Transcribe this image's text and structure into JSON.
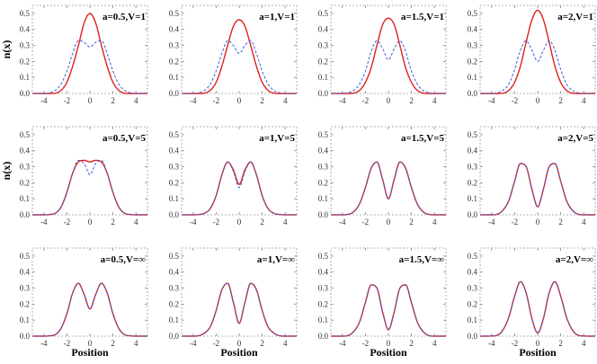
{
  "chart_data": {
    "type": "line",
    "layout": "3x4 grid of panels",
    "xlabel": "Position",
    "ylabel": "n(x)",
    "xlim": [
      -5,
      5
    ],
    "ylim": [
      0,
      0.55
    ],
    "x_ticks": [
      -4,
      -2,
      0,
      2,
      4
    ],
    "y_ticks": [
      0.0,
      0.1,
      0.2,
      0.3,
      0.4,
      0.5
    ],
    "frame": "dashed gray",
    "series_styles": [
      {
        "color": "#e0201a",
        "dash": "solid"
      },
      {
        "color": "#3a5ee0",
        "dash": "dashed"
      }
    ],
    "x": [
      -5,
      -4.5,
      -4,
      -3.5,
      -3,
      -2.5,
      -2,
      -1.5,
      -1,
      -0.5,
      0,
      0.5,
      1,
      1.5,
      2,
      2.5,
      3,
      3.5,
      4,
      4.5,
      5
    ],
    "panels": [
      {
        "label": "a=0.5,V=1",
        "series": [
          {
            "values": [
              0,
              0,
              0,
              0,
              0.002,
              0.02,
              0.07,
              0.17,
              0.3,
              0.44,
              0.5,
              0.44,
              0.3,
              0.17,
              0.07,
              0.02,
              0.002,
              0,
              0,
              0,
              0
            ]
          },
          {
            "values": [
              0,
              0,
              0,
              0.005,
              0.02,
              0.06,
              0.14,
              0.25,
              0.33,
              0.32,
              0.29,
              0.32,
              0.33,
              0.25,
              0.14,
              0.06,
              0.02,
              0.005,
              0,
              0,
              0
            ]
          }
        ]
      },
      {
        "label": "a=1,V=1",
        "series": [
          {
            "values": [
              0,
              0,
              0,
              0,
              0.003,
              0.02,
              0.07,
              0.17,
              0.3,
              0.42,
              0.46,
              0.42,
              0.3,
              0.17,
              0.07,
              0.02,
              0.003,
              0,
              0,
              0,
              0
            ]
          },
          {
            "values": [
              0,
              0,
              0,
              0.005,
              0.02,
              0.06,
              0.14,
              0.25,
              0.33,
              0.3,
              0.25,
              0.3,
              0.33,
              0.25,
              0.14,
              0.06,
              0.02,
              0.005,
              0,
              0,
              0
            ]
          }
        ]
      },
      {
        "label": "a=1.5,V=1",
        "series": [
          {
            "values": [
              0,
              0,
              0,
              0,
              0.003,
              0.02,
              0.07,
              0.16,
              0.3,
              0.43,
              0.47,
              0.43,
              0.3,
              0.16,
              0.07,
              0.02,
              0.003,
              0,
              0,
              0,
              0
            ]
          },
          {
            "values": [
              0,
              0,
              0,
              0.005,
              0.02,
              0.06,
              0.14,
              0.26,
              0.33,
              0.28,
              0.21,
              0.28,
              0.33,
              0.26,
              0.14,
              0.06,
              0.02,
              0.005,
              0,
              0,
              0
            ]
          }
        ]
      },
      {
        "label": "a=2,V=1",
        "series": [
          {
            "values": [
              0,
              0,
              0,
              0,
              0.002,
              0.02,
              0.07,
              0.17,
              0.32,
              0.46,
              0.52,
              0.46,
              0.32,
              0.17,
              0.07,
              0.02,
              0.002,
              0,
              0,
              0,
              0
            ]
          },
          {
            "values": [
              0,
              0,
              0,
              0.005,
              0.02,
              0.06,
              0.15,
              0.27,
              0.33,
              0.27,
              0.2,
              0.27,
              0.33,
              0.27,
              0.15,
              0.06,
              0.02,
              0.005,
              0,
              0,
              0
            ]
          }
        ]
      },
      {
        "label": "a=0.5,V=5",
        "series": [
          {
            "values": [
              0,
              0,
              0,
              0.002,
              0.01,
              0.05,
              0.14,
              0.26,
              0.33,
              0.34,
              0.33,
              0.34,
              0.33,
              0.26,
              0.14,
              0.05,
              0.01,
              0.002,
              0,
              0,
              0
            ]
          },
          {
            "values": [
              0,
              0,
              0,
              0.002,
              0.01,
              0.05,
              0.14,
              0.26,
              0.34,
              0.32,
              0.25,
              0.32,
              0.34,
              0.26,
              0.14,
              0.05,
              0.01,
              0.002,
              0,
              0,
              0
            ]
          }
        ]
      },
      {
        "label": "a=1,V=5",
        "series": [
          {
            "values": [
              0,
              0,
              0,
              0.002,
              0.01,
              0.04,
              0.12,
              0.25,
              0.33,
              0.28,
              0.19,
              0.28,
              0.33,
              0.25,
              0.12,
              0.04,
              0.01,
              0.002,
              0,
              0,
              0
            ]
          },
          {
            "values": [
              0,
              0,
              0,
              0.002,
              0.01,
              0.04,
              0.12,
              0.25,
              0.33,
              0.27,
              0.17,
              0.27,
              0.33,
              0.25,
              0.12,
              0.04,
              0.01,
              0.002,
              0,
              0,
              0
            ]
          }
        ]
      },
      {
        "label": "a=1.5,V=5",
        "series": [
          {
            "values": [
              0,
              0,
              0,
              0.003,
              0.02,
              0.07,
              0.17,
              0.29,
              0.33,
              0.22,
              0.1,
              0.22,
              0.33,
              0.29,
              0.17,
              0.07,
              0.02,
              0.003,
              0,
              0,
              0
            ]
          },
          {
            "values": [
              0,
              0,
              0,
              0.003,
              0.02,
              0.07,
              0.17,
              0.29,
              0.33,
              0.22,
              0.1,
              0.22,
              0.33,
              0.29,
              0.17,
              0.07,
              0.02,
              0.003,
              0,
              0,
              0
            ]
          }
        ]
      },
      {
        "label": "a=2,V=5",
        "series": [
          {
            "values": [
              0,
              0,
              0,
              0.004,
              0.03,
              0.09,
              0.21,
              0.32,
              0.3,
              0.16,
              0.05,
              0.16,
              0.3,
              0.32,
              0.21,
              0.09,
              0.03,
              0.004,
              0,
              0,
              0
            ]
          },
          {
            "values": [
              0,
              0,
              0,
              0.004,
              0.03,
              0.09,
              0.21,
              0.32,
              0.3,
              0.16,
              0.05,
              0.16,
              0.3,
              0.32,
              0.21,
              0.09,
              0.03,
              0.004,
              0,
              0,
              0
            ]
          }
        ]
      },
      {
        "label": "a=0.5,V=∞",
        "series": [
          {
            "values": [
              0,
              0,
              0,
              0.002,
              0.01,
              0.05,
              0.14,
              0.27,
              0.33,
              0.26,
              0.17,
              0.26,
              0.33,
              0.27,
              0.14,
              0.05,
              0.01,
              0.002,
              0,
              0,
              0
            ]
          },
          {
            "values": [
              0,
              0,
              0,
              0.002,
              0.01,
              0.05,
              0.14,
              0.27,
              0.33,
              0.26,
              0.17,
              0.26,
              0.33,
              0.27,
              0.14,
              0.05,
              0.01,
              0.002,
              0,
              0,
              0
            ]
          }
        ]
      },
      {
        "label": "a=1,V=∞",
        "series": [
          {
            "values": [
              0,
              0,
              0,
              0.003,
              0.02,
              0.06,
              0.16,
              0.29,
              0.33,
              0.21,
              0.08,
              0.21,
              0.33,
              0.29,
              0.16,
              0.06,
              0.02,
              0.003,
              0,
              0,
              0
            ]
          },
          {
            "values": [
              0,
              0,
              0,
              0.003,
              0.02,
              0.06,
              0.16,
              0.29,
              0.33,
              0.21,
              0.08,
              0.21,
              0.33,
              0.29,
              0.16,
              0.06,
              0.02,
              0.003,
              0,
              0,
              0
            ]
          }
        ]
      },
      {
        "label": "a=1.5,V=∞",
        "series": [
          {
            "values": [
              0,
              0,
              0,
              0.004,
              0.03,
              0.09,
              0.21,
              0.32,
              0.3,
              0.15,
              0.04,
              0.15,
              0.3,
              0.32,
              0.21,
              0.09,
              0.03,
              0.004,
              0,
              0,
              0
            ]
          },
          {
            "values": [
              0,
              0,
              0,
              0.004,
              0.03,
              0.09,
              0.21,
              0.32,
              0.3,
              0.15,
              0.04,
              0.15,
              0.3,
              0.32,
              0.21,
              0.09,
              0.03,
              0.004,
              0,
              0,
              0
            ]
          }
        ]
      },
      {
        "label": "a=2,V=∞",
        "series": [
          {
            "values": [
              0,
              0,
              0.001,
              0.006,
              0.04,
              0.12,
              0.25,
              0.34,
              0.27,
              0.11,
              0.02,
              0.11,
              0.27,
              0.34,
              0.25,
              0.12,
              0.04,
              0.006,
              0.001,
              0,
              0
            ]
          },
          {
            "values": [
              0,
              0,
              0.001,
              0.006,
              0.04,
              0.12,
              0.25,
              0.34,
              0.27,
              0.11,
              0.02,
              0.11,
              0.27,
              0.34,
              0.25,
              0.12,
              0.04,
              0.006,
              0.001,
              0,
              0
            ]
          }
        ]
      }
    ]
  }
}
